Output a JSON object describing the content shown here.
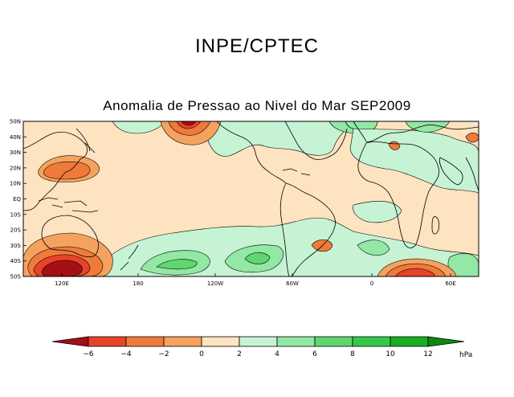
{
  "header": {
    "title": "INPE/CPTEC"
  },
  "map": {
    "title": "Anomalia de Pressao ao Nivel do Mar SEP2009",
    "lat_labels": [
      "50N",
      "40N",
      "30N",
      "20N",
      "10N",
      "EQ",
      "10S",
      "20S",
      "30S",
      "40S",
      "50S"
    ],
    "lon_labels": [
      "120E",
      "180",
      "120W",
      "60W",
      "0",
      "60E"
    ]
  },
  "colorbar": {
    "unit": "hPa",
    "tick_labels": [
      "−6",
      "−4",
      "−2",
      "0",
      "2",
      "4",
      "6",
      "8",
      "10",
      "12"
    ],
    "colors": [
      "#a50f15",
      "#e8432a",
      "#f07a3a",
      "#f5a25e",
      "#fde3c0",
      "#ffffff",
      "#c6f3d4",
      "#92e8a4",
      "#5fd66e",
      "#36c84a",
      "#17ae20",
      "#0b8a10",
      "#086b0c"
    ]
  }
}
